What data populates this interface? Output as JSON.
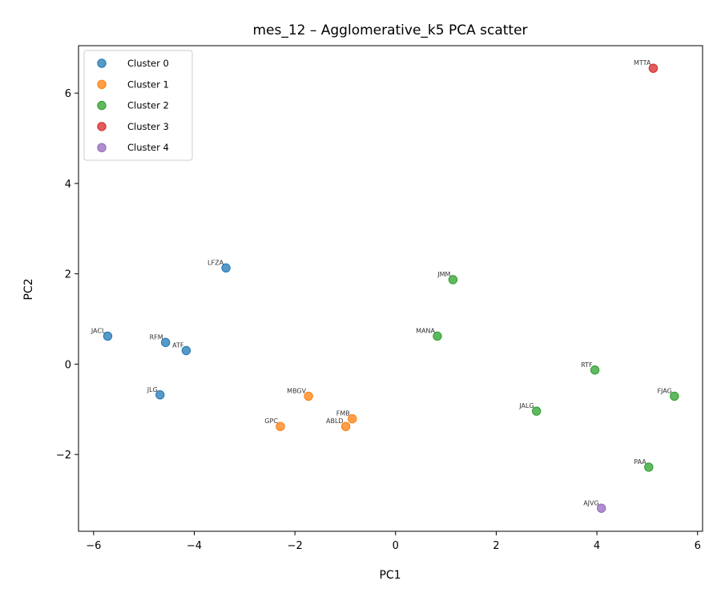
{
  "chart_data": {
    "type": "scatter",
    "title": "mes_12 – Agglomerative_k5 PCA scatter",
    "xlabel": "PC1",
    "ylabel": "PC2",
    "xlim": [
      -6.3,
      6.1
    ],
    "ylim": [
      -3.7,
      7.05
    ],
    "xticks": [
      -6,
      -4,
      -2,
      0,
      2,
      4,
      6
    ],
    "yticks": [
      -2,
      0,
      2,
      4,
      6
    ],
    "xtick_labels": [
      "−6",
      "−4",
      "−2",
      "0",
      "2",
      "4",
      "6"
    ],
    "ytick_labels": [
      "−2",
      "0",
      "2",
      "4",
      "6"
    ],
    "grid": false,
    "legend_position": "upper-left",
    "series": [
      {
        "name": "Cluster 0",
        "color": "#1f77b4",
        "points": [
          {
            "label": "JACL",
            "x": -5.72,
            "y": 0.62
          },
          {
            "label": "RFM",
            "x": -4.57,
            "y": 0.48
          },
          {
            "label": "ATF",
            "x": -4.16,
            "y": 0.3
          },
          {
            "label": "LFZA",
            "x": -3.37,
            "y": 2.13
          },
          {
            "label": "JLG",
            "x": -4.68,
            "y": -0.68
          }
        ]
      },
      {
        "name": "Cluster 1",
        "color": "#ff7f0e",
        "points": [
          {
            "label": "MBGV",
            "x": -1.73,
            "y": -0.71
          },
          {
            "label": "GPC",
            "x": -2.29,
            "y": -1.38
          },
          {
            "label": "FMB",
            "x": -0.86,
            "y": -1.21
          },
          {
            "label": "ABLD",
            "x": -0.99,
            "y": -1.38
          }
        ]
      },
      {
        "name": "Cluster 2",
        "color": "#2ca02c",
        "points": [
          {
            "label": "JMM",
            "x": 1.14,
            "y": 1.87
          },
          {
            "label": "MANA",
            "x": 0.83,
            "y": 0.62
          },
          {
            "label": "RTF",
            "x": 3.96,
            "y": -0.13
          },
          {
            "label": "FJAG",
            "x": 5.54,
            "y": -0.71
          },
          {
            "label": "JALG",
            "x": 2.8,
            "y": -1.04
          },
          {
            "label": "PAA",
            "x": 5.03,
            "y": -2.28
          }
        ]
      },
      {
        "name": "Cluster 3",
        "color": "#d62728",
        "points": [
          {
            "label": "MTTA",
            "x": 5.12,
            "y": 6.55
          }
        ]
      },
      {
        "name": "Cluster 4",
        "color": "#9467bd",
        "points": [
          {
            "label": "AJVG",
            "x": 4.09,
            "y": -3.19
          }
        ]
      }
    ]
  }
}
